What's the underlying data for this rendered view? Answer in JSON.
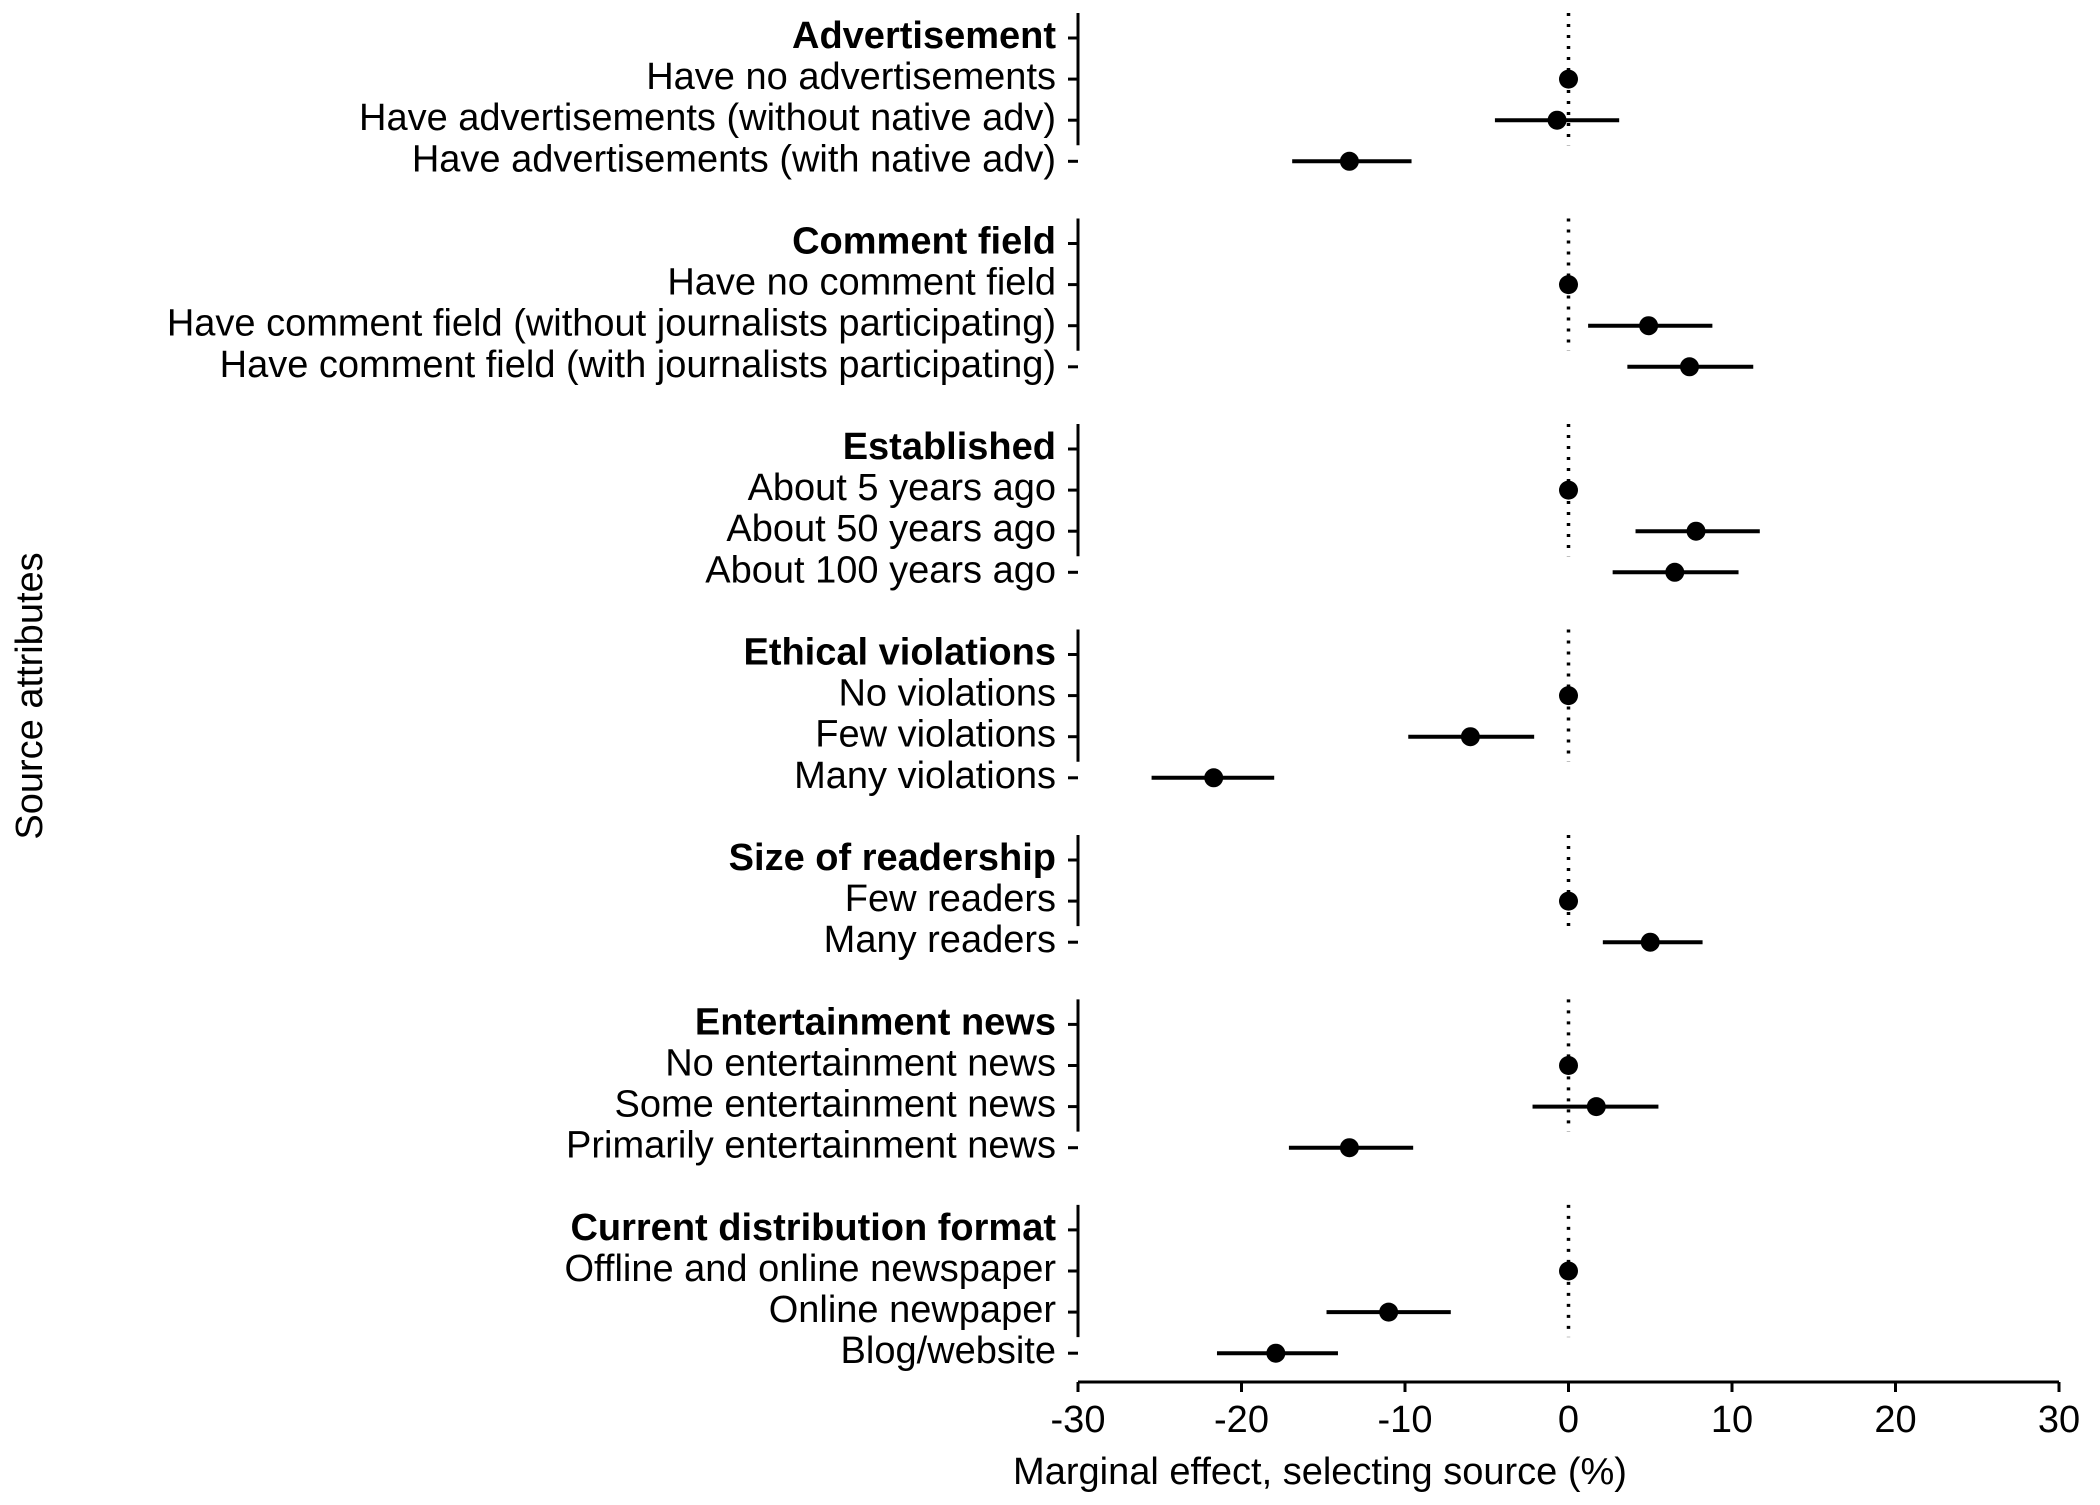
{
  "chart_data": {
    "type": "coefplot",
    "xlabel": "Marginal effect, selecting source (%)",
    "ylabel": "Source attributes",
    "xlim": [
      -30,
      30
    ],
    "xticks": [
      -30,
      -20,
      -10,
      0,
      10,
      20,
      30
    ],
    "reference_line": 0,
    "color": "#000000",
    "groups": [
      {
        "name": "Advertisement",
        "categories": [
          "Have no advertisements",
          "Have advertisements (without native adv)",
          "Have advertisements (with native adv)"
        ],
        "values": [
          0,
          -0.7,
          -13.4
        ],
        "lower": [
          null,
          -4.5,
          -16.9
        ],
        "upper": [
          null,
          3.1,
          -9.6
        ]
      },
      {
        "name": "Comment field",
        "categories": [
          "Have no comment field",
          "Have comment field (without journalists participating)",
          "Have comment field (with journalists participating)"
        ],
        "values": [
          0,
          4.9,
          7.4
        ],
        "lower": [
          null,
          1.2,
          3.6
        ],
        "upper": [
          null,
          8.8,
          11.3
        ]
      },
      {
        "name": "Established",
        "categories": [
          "About 5 years ago",
          "About 50 years ago",
          "About 100 years ago"
        ],
        "values": [
          0,
          7.8,
          6.5
        ],
        "lower": [
          null,
          4.1,
          2.7
        ],
        "upper": [
          null,
          11.7,
          10.4
        ]
      },
      {
        "name": "Ethical violations",
        "categories": [
          "No violations",
          "Few violations",
          "Many violations"
        ],
        "values": [
          0,
          -6.0,
          -21.7
        ],
        "lower": [
          null,
          -9.8,
          -25.5
        ],
        "upper": [
          null,
          -2.1,
          -18.0
        ]
      },
      {
        "name": "Size of readership",
        "categories": [
          "Few readers",
          "Many readers"
        ],
        "values": [
          0,
          5.0
        ],
        "lower": [
          null,
          2.1
        ],
        "upper": [
          null,
          8.2
        ]
      },
      {
        "name": "Entertainment news",
        "categories": [
          "No entertainment news",
          "Some entertainment news",
          "Primarily entertainment news"
        ],
        "values": [
          0,
          1.7,
          -13.4
        ],
        "lower": [
          null,
          -2.2,
          -17.1
        ],
        "upper": [
          null,
          5.5,
          -9.5
        ]
      },
      {
        "name": "Current distribution format",
        "categories": [
          "Offline and online newspaper",
          "Online newpaper",
          "Blog/website"
        ],
        "values": [
          0,
          -11.0,
          -17.9
        ],
        "lower": [
          null,
          -14.8,
          -21.5
        ],
        "upper": [
          null,
          -7.2,
          -14.1
        ]
      }
    ]
  }
}
